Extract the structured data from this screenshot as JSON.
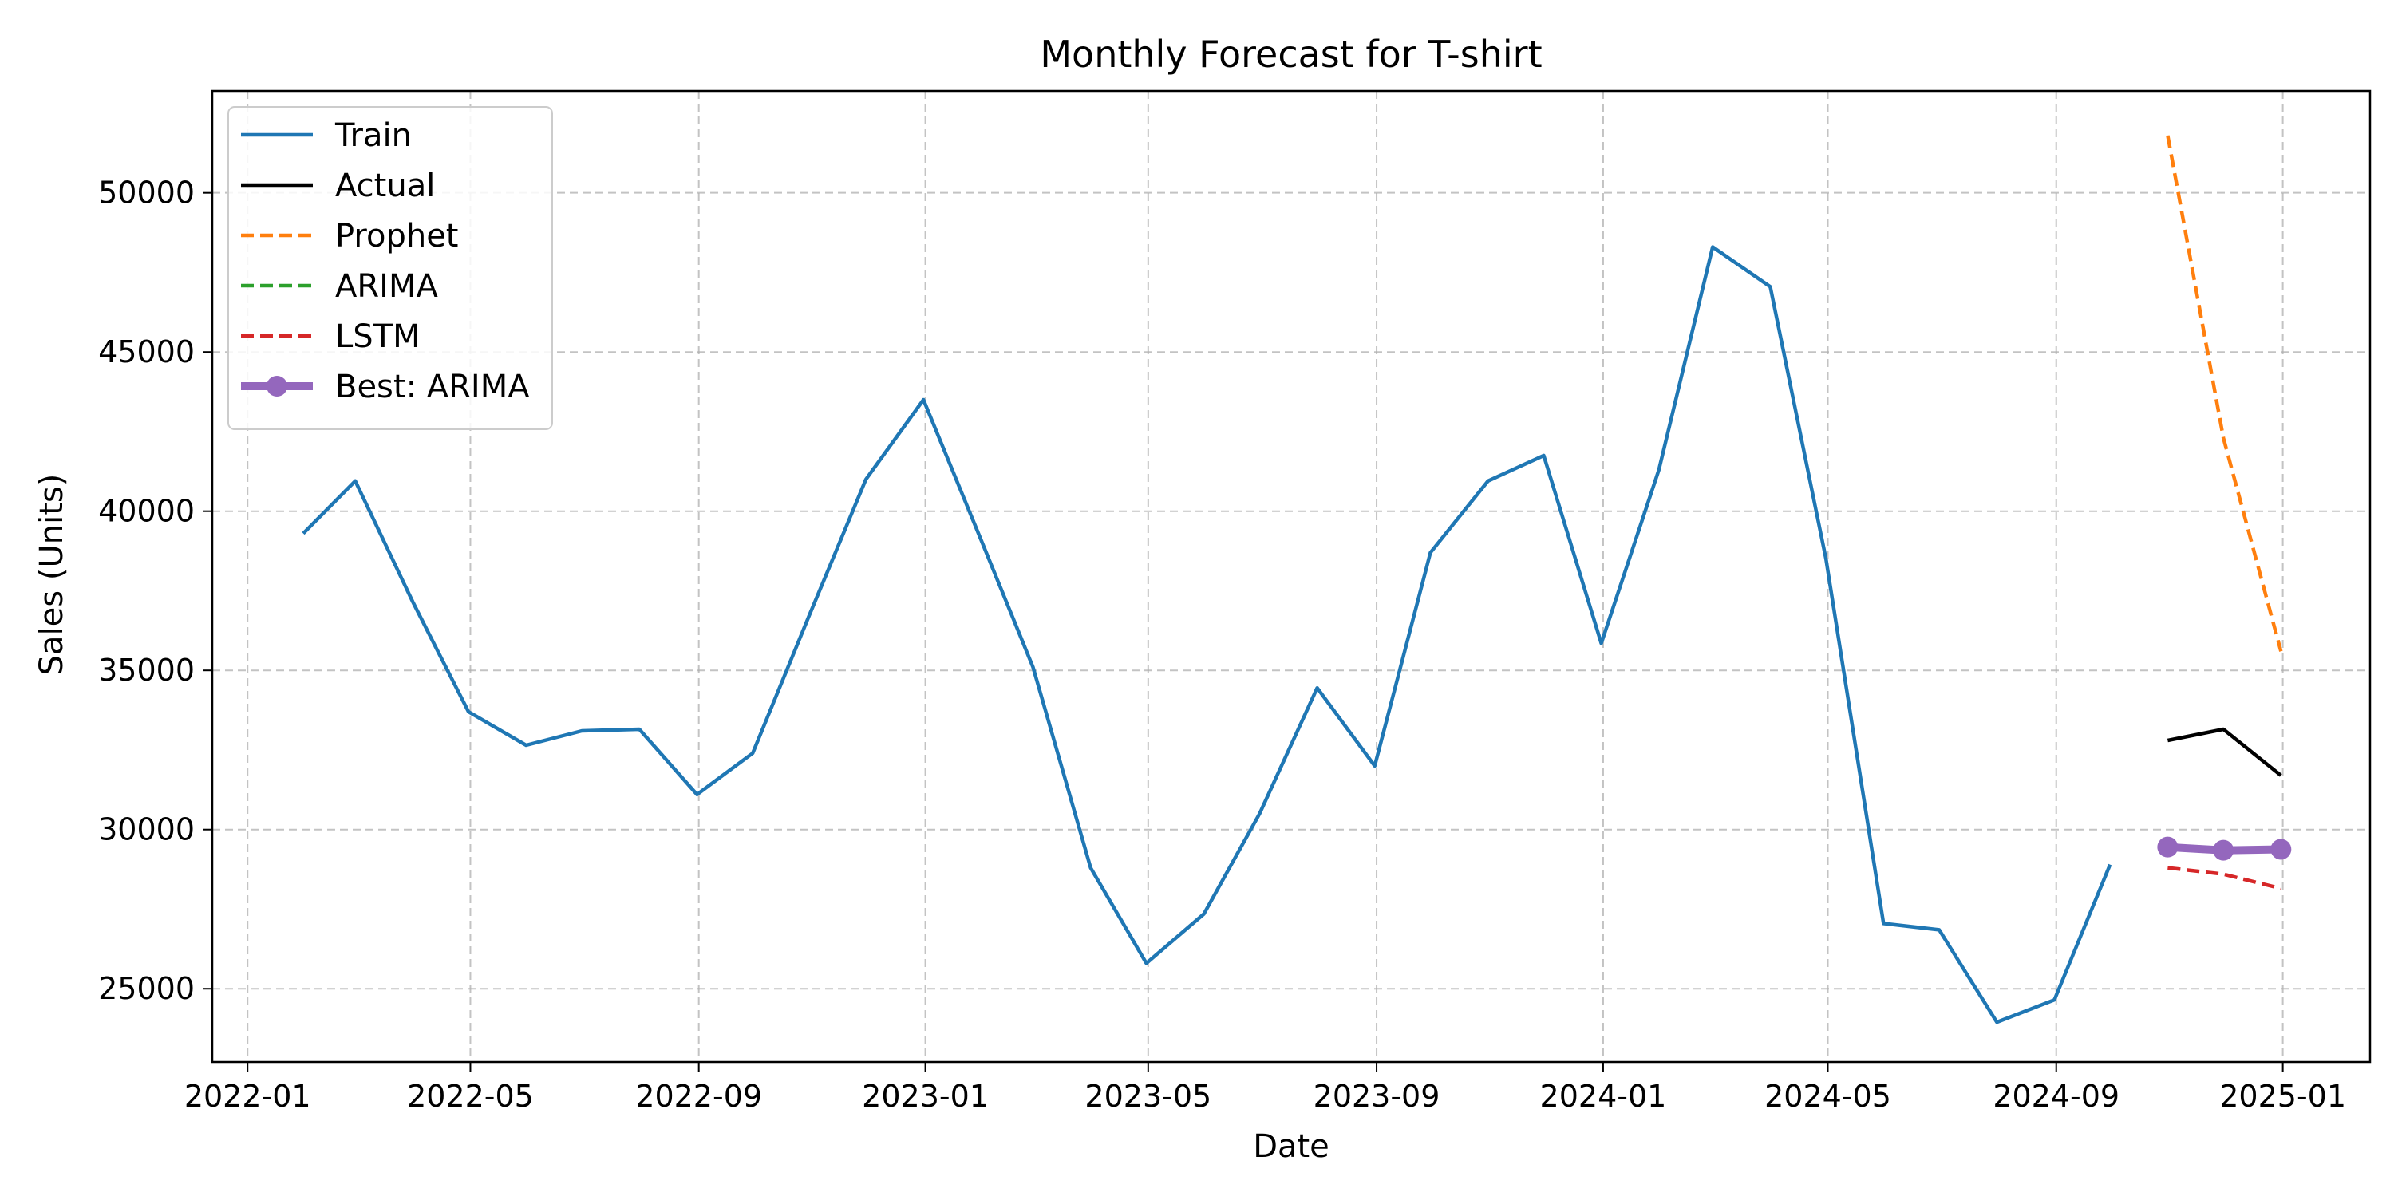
{
  "chart_data": {
    "type": "line",
    "title": "Monthly Forecast for T-shirt",
    "xlabel": "Date",
    "ylabel": "Sales (Units)",
    "x_axis_type": "date",
    "xlim": [
      "2021-12-13",
      "2025-02-17"
    ],
    "ylim": [
      22700,
      53200
    ],
    "x_ticks": [
      "2022-01-01",
      "2022-05-01",
      "2022-09-01",
      "2023-01-01",
      "2023-05-01",
      "2023-09-01",
      "2024-01-01",
      "2024-05-01",
      "2024-09-01",
      "2025-01-01"
    ],
    "x_tick_labels": [
      "2022-01",
      "2022-05",
      "2022-09",
      "2023-01",
      "2023-05",
      "2023-09",
      "2024-01",
      "2024-05",
      "2024-09",
      "2025-01"
    ],
    "y_ticks": [
      25000,
      30000,
      35000,
      40000,
      45000,
      50000
    ],
    "y_tick_labels": [
      "25000",
      "30000",
      "35000",
      "40000",
      "45000",
      "50000"
    ],
    "grid": true,
    "legend_position": "top-left",
    "series": [
      {
        "name": "Train",
        "color": "#1f77b4",
        "style": "solid",
        "x": [
          "2022-01-31",
          "2022-02-28",
          "2022-03-31",
          "2022-04-30",
          "2022-05-31",
          "2022-06-30",
          "2022-07-31",
          "2022-08-31",
          "2022-09-30",
          "2022-10-31",
          "2022-11-30",
          "2022-12-31",
          "2023-01-31",
          "2023-02-28",
          "2023-03-31",
          "2023-04-30",
          "2023-05-31",
          "2023-06-30",
          "2023-07-31",
          "2023-08-31",
          "2023-09-30",
          "2023-10-31",
          "2023-11-30",
          "2023-12-31",
          "2024-01-31",
          "2024-02-29",
          "2024-03-31",
          "2024-04-30",
          "2024-05-31",
          "2024-06-30",
          "2024-07-31",
          "2024-08-31",
          "2024-09-30"
        ],
        "values": [
          39300,
          40950,
          37150,
          33700,
          32650,
          33100,
          33150,
          31100,
          32400,
          36800,
          41000,
          43500,
          39100,
          35100,
          28800,
          25800,
          27350,
          30500,
          34450,
          32000,
          38700,
          40950,
          41750,
          35850,
          41300,
          48300,
          47050,
          38500,
          27050,
          26850,
          23950,
          24650,
          28900
        ]
      },
      {
        "name": "Actual",
        "color": "#000000",
        "style": "solid",
        "x": [
          "2024-10-31",
          "2024-11-30",
          "2024-12-31"
        ],
        "values": [
          32800,
          33150,
          31700
        ]
      },
      {
        "name": "Prophet",
        "color": "#ff7f0e",
        "style": "dashed",
        "x": [
          "2024-10-31",
          "2024-11-30",
          "2024-12-31"
        ],
        "values": [
          51800,
          42300,
          35600
        ]
      },
      {
        "name": "ARIMA",
        "color": "#2ca02c",
        "style": "dashed",
        "x": [
          "2024-10-31",
          "2024-11-30",
          "2024-12-31"
        ],
        "values": [
          29450,
          29350,
          29380
        ]
      },
      {
        "name": "LSTM",
        "color": "#d62728",
        "style": "dashed",
        "x": [
          "2024-10-31",
          "2024-11-30",
          "2024-12-31"
        ],
        "values": [
          28800,
          28600,
          28150
        ]
      },
      {
        "name": "Best: ARIMA",
        "color": "#9467bd",
        "style": "solid-thick-markers",
        "x": [
          "2024-10-31",
          "2024-11-30",
          "2024-12-31"
        ],
        "values": [
          29450,
          29350,
          29380
        ]
      }
    ]
  }
}
